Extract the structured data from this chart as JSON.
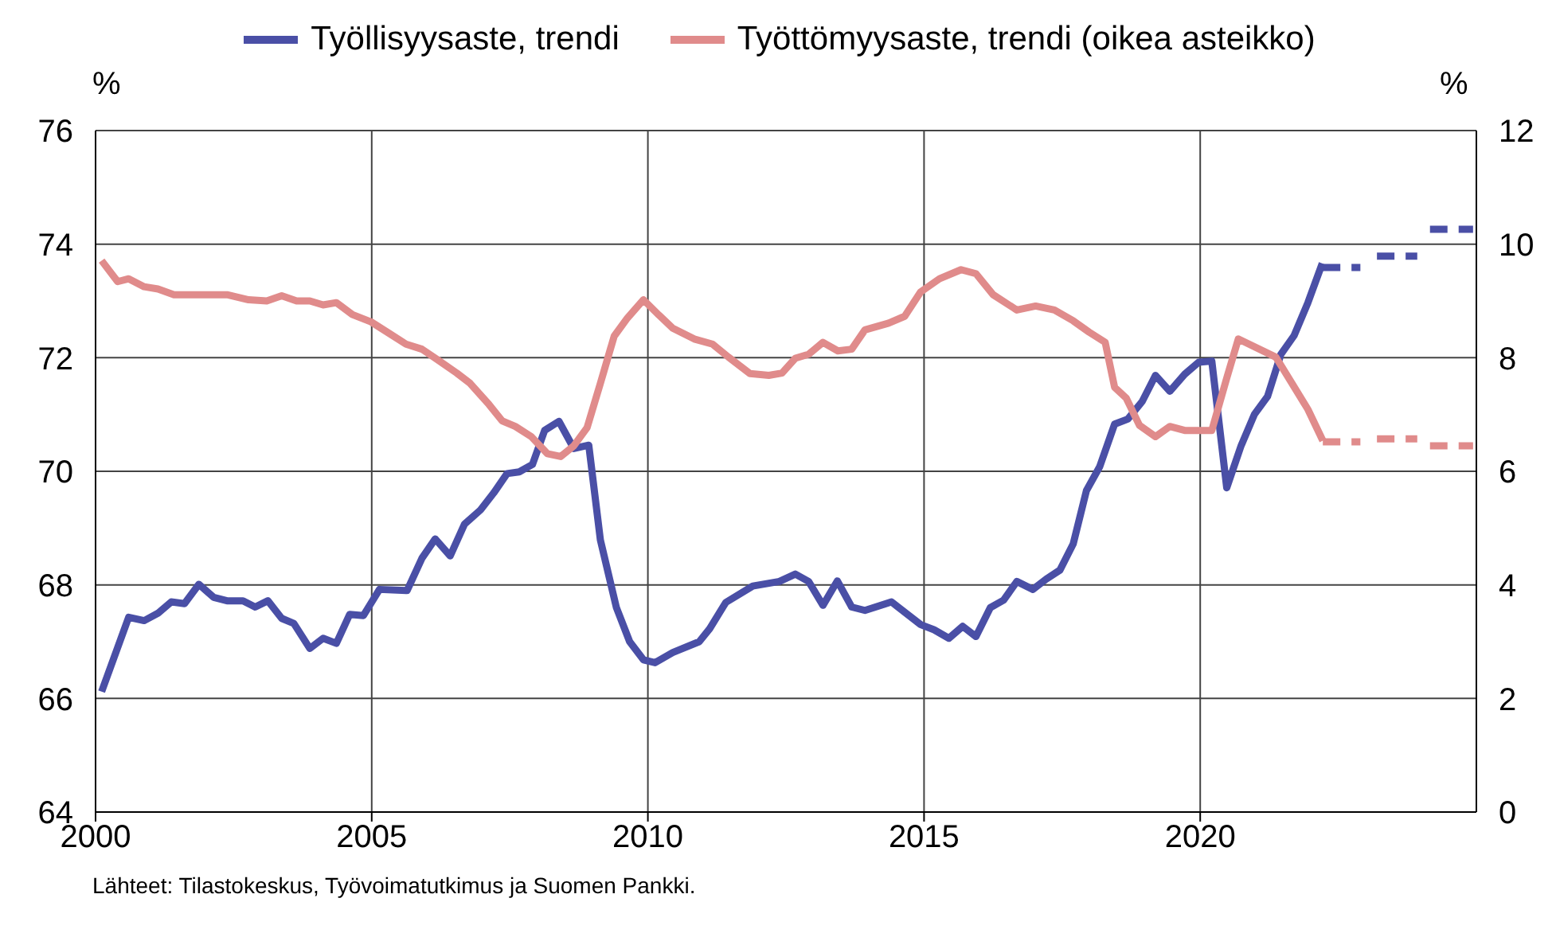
{
  "chart_data": {
    "type": "line",
    "ylabel": "%",
    "y2label": "%",
    "xlim": [
      2000,
      2025
    ],
    "xticks": [
      2000,
      2005,
      2010,
      2015,
      2020
    ],
    "ylim": [
      64,
      76
    ],
    "yticks": [
      64,
      66,
      68,
      70,
      72,
      74,
      76
    ],
    "y2lim": [
      0,
      12
    ],
    "y2ticks": [
      0,
      2,
      4,
      6,
      8,
      10,
      12
    ],
    "grid": true,
    "legend": "top",
    "line_style": "solid",
    "annotations": [
      "Lähteet: Tilastokeskus, Työvoimatutkimus ja Suomen Pankki."
    ],
    "series": [
      {
        "name": "Työllisyysaste, trendi",
        "color": "#4a4fa6",
        "x": [
          2000.11,
          2000.6,
          2000.88,
          2001.13,
          2001.37,
          2001.61,
          2001.87,
          2002.14,
          2002.38,
          2002.67,
          2002.89,
          2003.12,
          2003.37,
          2003.59,
          2003.88,
          2004.12,
          2004.36,
          2004.6,
          2004.85,
          2005.14,
          2005.64,
          2005.91,
          2006.15,
          2006.42,
          2006.68,
          2006.97,
          2007.21,
          2007.45,
          2007.67,
          2007.91,
          2008.13,
          2008.39,
          2008.66,
          2008.93,
          2009.14,
          2009.43,
          2009.67,
          2009.92,
          2010.13,
          2010.45,
          2010.93,
          2011.12,
          2011.41,
          2011.9,
          2012.38,
          2012.67,
          2012.91,
          2013.17,
          2013.43,
          2013.69,
          2013.93,
          2014.41,
          2014.94,
          2015.18,
          2015.45,
          2015.7,
          2015.94,
          2016.2,
          2016.44,
          2016.68,
          2016.97,
          2017.21,
          2017.46,
          2017.7,
          2017.94,
          2018.18,
          2018.45,
          2018.69,
          2018.95,
          2019.19,
          2019.45,
          2019.72,
          2019.97,
          2020.21,
          2020.48,
          2020.74,
          2020.98,
          2021.22,
          2021.46,
          2021.7,
          2021.95,
          2022.21
        ],
        "values": [
          66.12,
          67.43,
          67.37,
          67.5,
          67.7,
          67.67,
          68.01,
          67.78,
          67.72,
          67.72,
          67.61,
          67.72,
          67.41,
          67.32,
          66.88,
          67.06,
          66.97,
          67.48,
          67.46,
          67.92,
          67.9,
          68.47,
          68.81,
          68.51,
          69.07,
          69.32,
          69.62,
          69.96,
          69.99,
          70.12,
          70.72,
          70.88,
          70.4,
          70.46,
          68.79,
          67.6,
          67.0,
          66.68,
          66.63,
          66.81,
          67.0,
          67.23,
          67.69,
          67.98,
          68.06,
          68.19,
          68.06,
          67.64,
          68.07,
          67.61,
          67.55,
          67.7,
          67.3,
          67.21,
          67.06,
          67.27,
          67.09,
          67.6,
          67.73,
          68.06,
          67.92,
          68.1,
          68.26,
          68.72,
          69.66,
          70.08,
          70.83,
          70.92,
          71.23,
          71.69,
          71.41,
          71.71,
          71.92,
          71.94,
          69.71,
          70.45,
          71.0,
          71.32,
          72.06,
          72.39,
          72.97,
          73.66
        ]
      },
      {
        "color": "#4a4fa6",
        "line_style": "dashed",
        "x": [
          2022.22,
          2022.9,
          2023.05,
          2023.2,
          2023.93,
          2024.05,
          2024.16,
          2024.94
        ],
        "values": [
          73.59,
          73.59,
          null,
          73.79,
          73.79,
          null,
          74.26,
          74.26
        ]
      },
      {
        "name": "Työttömyysaste, trendi (oikea asteikko)",
        "color": "#e08b8b",
        "axis": "y2",
        "x": [
          2000.11,
          2000.4,
          2000.6,
          2000.88,
          2001.13,
          2001.42,
          2002.38,
          2002.77,
          2003.1,
          2003.37,
          2003.64,
          2003.88,
          2004.12,
          2004.36,
          2004.65,
          2004.99,
          2005.33,
          2005.62,
          2005.91,
          2006.2,
          2006.54,
          2006.78,
          2007.12,
          2007.36,
          2007.6,
          2007.89,
          2008.18,
          2008.42,
          2008.66,
          2008.9,
          2009.14,
          2009.39,
          2009.63,
          2009.92,
          2010.2,
          2010.45,
          2010.84,
          2011.17,
          2011.46,
          2011.85,
          2012.19,
          2012.43,
          2012.67,
          2012.91,
          2013.17,
          2013.44,
          2013.69,
          2013.93,
          2014.36,
          2014.65,
          2014.94,
          2015.28,
          2015.67,
          2015.94,
          2016.25,
          2016.68,
          2017.02,
          2017.36,
          2017.7,
          2017.99,
          2018.28,
          2018.45,
          2018.66,
          2018.9,
          2019.19,
          2019.45,
          2019.72,
          2020.21,
          2020.48,
          2020.69,
          2021.37,
          2021.66,
          2021.95,
          2022.22
        ],
        "values": [
          9.71,
          9.34,
          9.39,
          9.25,
          9.21,
          9.11,
          9.11,
          9.02,
          9.0,
          9.09,
          9.0,
          9.0,
          8.93,
          8.97,
          8.76,
          8.63,
          8.42,
          8.24,
          8.15,
          7.96,
          7.73,
          7.55,
          7.18,
          6.89,
          6.79,
          6.61,
          6.31,
          6.26,
          6.45,
          6.77,
          7.55,
          8.38,
          8.7,
          9.02,
          8.75,
          8.52,
          8.33,
          8.24,
          8.01,
          7.72,
          7.69,
          7.73,
          7.99,
          8.06,
          8.27,
          8.12,
          8.15,
          8.49,
          8.61,
          8.73,
          9.16,
          9.39,
          9.55,
          9.48,
          9.11,
          8.84,
          8.91,
          8.84,
          8.65,
          8.45,
          8.27,
          7.48,
          7.29,
          6.81,
          6.61,
          6.79,
          6.72,
          6.72,
          7.64,
          8.33,
          8.01,
          7.55,
          7.09,
          6.54
        ]
      },
      {
        "color": "#e08b8b",
        "axis": "y2",
        "line_style": "dashed",
        "x": [
          2022.22,
          2022.9,
          2023.05,
          2023.2,
          2023.93,
          2024.05,
          2024.16,
          2024.94
        ],
        "values": [
          6.52,
          6.52,
          null,
          6.57,
          6.57,
          null,
          6.45,
          6.45
        ]
      }
    ]
  }
}
